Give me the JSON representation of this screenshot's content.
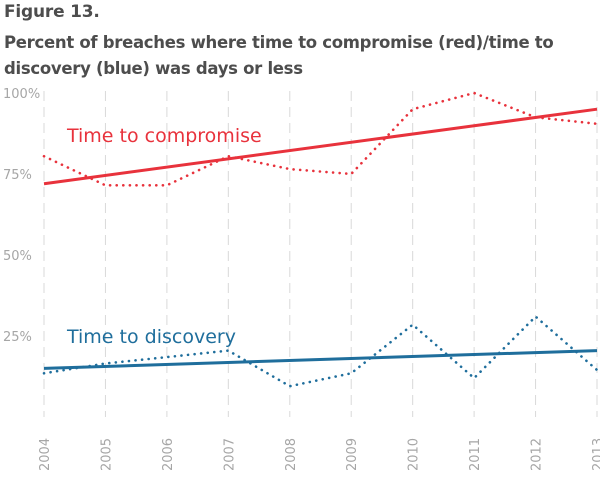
{
  "figure": {
    "number": "Figure 13.",
    "title": "Percent of breaches where time to compromise (red)/time to discovery (blue) was days or less"
  },
  "colors": {
    "compromise": "#e8323c",
    "discovery": "#1f6e9c",
    "text": "#4d4d4d",
    "axis_text": "#a6a6a6",
    "grid": "#d9d9d9"
  },
  "chart_data": {
    "type": "line",
    "x": [
      "2004",
      "2005",
      "2006",
      "2007",
      "2008",
      "2009",
      "2010",
      "2011",
      "2012",
      "2013"
    ],
    "ylim": [
      0,
      100
    ],
    "yticks": [
      25,
      50,
      75,
      100
    ],
    "ytick_labels": [
      "25%",
      "50%",
      "75%",
      "100%"
    ],
    "grid": "vertical dashed",
    "series": [
      {
        "name": "Time to compromise",
        "color": "#e8323c",
        "values": [
          80.5,
          71.5,
          71.5,
          80.5,
          76.5,
          75,
          95,
          100,
          92.5,
          90.5
        ],
        "trend": [
          72,
          95
        ]
      },
      {
        "name": "Time to discovery",
        "color": "#1f6e9c",
        "values": [
          13.5,
          16.5,
          18.5,
          20.5,
          9.5,
          13.5,
          28.5,
          12,
          31,
          14.5
        ],
        "trend": [
          15,
          20.5
        ]
      }
    ]
  }
}
